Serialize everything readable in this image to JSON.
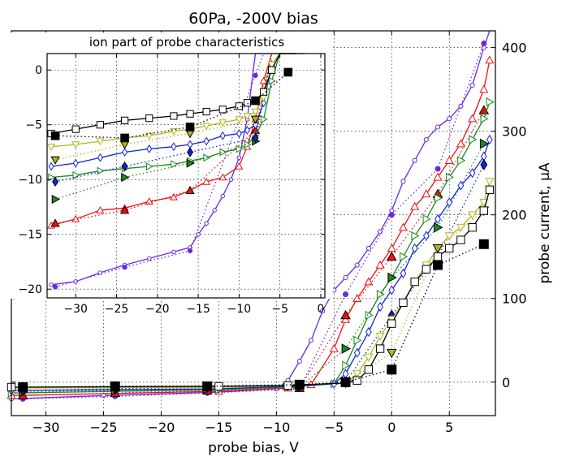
{
  "chart_data": [
    {
      "type": "line",
      "title": "60Pa, -200V bias",
      "xlabel": "probe bias, V",
      "ylabel": "probe current, μA",
      "xlim": [
        -33,
        9
      ],
      "ylim": [
        -40,
        420
      ],
      "xticks": [
        -30,
        -25,
        -20,
        -15,
        -10,
        -5,
        0,
        5
      ],
      "yticks": [
        0,
        100,
        200,
        300,
        400
      ],
      "xtick_labels": [
        "−30",
        "−25",
        "−20",
        "−15",
        "−10",
        "−5",
        "0",
        "5"
      ],
      "ytick_labels": [
        "0",
        "100",
        "200",
        "300",
        "400"
      ],
      "grid": true,
      "series": [
        {
          "color": "#6a2be0",
          "style": "solid",
          "x": [
            -33,
            -25,
            -15,
            -10,
            -9,
            -8,
            -7,
            -6,
            -5,
            -4,
            -3,
            -2,
            -1,
            0,
            1,
            2,
            3,
            4,
            5,
            6,
            7,
            8,
            8.5
          ],
          "y": [
            -20,
            -16,
            -12,
            -8,
            2,
            25,
            50,
            85,
            110,
            125,
            140,
            160,
            180,
            205,
            240,
            265,
            290,
            305,
            315,
            330,
            355,
            400,
            420
          ]
        },
        {
          "color": "#6a2be0",
          "style": "dotted",
          "x": [
            -32,
            -24,
            -16,
            -8,
            -4,
            0,
            4,
            8
          ],
          "y": [
            -20,
            -17,
            -13,
            -8,
            105,
            200,
            255,
            405
          ]
        },
        {
          "color": "#ee1111",
          "style": "solid",
          "x": [
            -33,
            -15,
            -9,
            -7,
            -5,
            -4,
            -3,
            -2,
            -1,
            0,
            1,
            2,
            3,
            4,
            5,
            6,
            7,
            8,
            8.5
          ],
          "y": [
            -16,
            -11,
            -7,
            -3,
            40,
            75,
            100,
            120,
            140,
            160,
            185,
            210,
            225,
            245,
            265,
            285,
            315,
            350,
            385
          ]
        },
        {
          "color": "#ee1111",
          "style": "dotted",
          "x": [
            -32,
            -24,
            -16,
            -8,
            -4,
            0,
            4,
            8
          ],
          "y": [
            -16,
            -13,
            -10,
            -7,
            80,
            150,
            225,
            325
          ]
        },
        {
          "color": "#1a8a1a",
          "style": "solid",
          "x": [
            -33,
            -15,
            -9,
            -5,
            -4,
            -3,
            -2,
            -1,
            0,
            1,
            2,
            3,
            4,
            5,
            6,
            7,
            8,
            8.5
          ],
          "y": [
            -13,
            -9,
            -6,
            -2,
            20,
            50,
            80,
            105,
            125,
            150,
            175,
            195,
            220,
            245,
            265,
            290,
            315,
            335
          ]
        },
        {
          "color": "#1a8a1a",
          "style": "dotted",
          "x": [
            -32,
            -24,
            -16,
            -8,
            -4,
            0,
            4,
            8
          ],
          "y": [
            -12,
            -10,
            -8,
            -6,
            40,
            125,
            185,
            285
          ]
        },
        {
          "color": "#1122dd",
          "style": "solid",
          "x": [
            -33,
            -15,
            -9,
            -5,
            -4,
            -3,
            -2,
            -1,
            0,
            1,
            2,
            3,
            4,
            5,
            6,
            7,
            8,
            8.5
          ],
          "y": [
            -10,
            -8,
            -5,
            -2,
            10,
            35,
            60,
            90,
            110,
            130,
            160,
            175,
            195,
            215,
            235,
            250,
            270,
            290
          ]
        },
        {
          "color": "#1122dd",
          "style": "dotted",
          "x": [
            -32,
            -24,
            -16,
            -8,
            -4,
            0,
            4,
            8
          ],
          "y": [
            -10,
            -8,
            -6,
            -5,
            0,
            80,
            150,
            260
          ]
        },
        {
          "color": "#b5b51a",
          "style": "solid",
          "x": [
            -33,
            -15,
            -9,
            -4,
            -3,
            -2,
            -1,
            0,
            1,
            2,
            3,
            4,
            5,
            6,
            7,
            8,
            8.5
          ],
          "y": [
            -7,
            -6,
            -4,
            -1,
            10,
            30,
            55,
            75,
            95,
            120,
            140,
            160,
            175,
            185,
            200,
            215,
            240
          ]
        },
        {
          "color": "#b5b51a",
          "style": "dotted",
          "x": [
            -32,
            -24,
            -16,
            -8,
            -4,
            0,
            4,
            8
          ],
          "y": [
            -7,
            -5,
            -4,
            -3,
            -1,
            35,
            160,
            205
          ]
        },
        {
          "color": "#000000",
          "style": "solid",
          "x": [
            -33,
            -15,
            -9,
            -4,
            -3,
            -2,
            -1,
            0,
            1,
            2,
            3,
            4,
            5,
            6,
            7,
            8,
            8.5
          ],
          "y": [
            -6,
            -5,
            -4,
            -1,
            2,
            15,
            40,
            70,
            95,
            120,
            135,
            150,
            160,
            170,
            185,
            205,
            230
          ]
        },
        {
          "color": "#000000",
          "style": "dotted",
          "x": [
            -32,
            -24,
            -16,
            -8,
            -4,
            0,
            4,
            8
          ],
          "y": [
            -6,
            -5,
            -5,
            -3,
            0,
            15,
            140,
            165
          ]
        }
      ]
    },
    {
      "type": "line",
      "title": "ion part of probe characteristics",
      "xlim": [
        -33.5,
        0.5
      ],
      "ylim": [
        -20.8,
        1.5
      ],
      "xticks": [
        -30,
        -25,
        -20,
        -15,
        -10,
        -5,
        0
      ],
      "yticks": [
        0,
        -5,
        -10,
        -15,
        -20
      ],
      "xtick_labels": [
        "−30",
        "−25",
        "−20",
        "−15",
        "−10",
        "−5",
        "0"
      ],
      "ytick_labels": [
        "0",
        "−5",
        "−10",
        "−15",
        "−20"
      ],
      "grid": true,
      "series": [
        {
          "color": "#6a2be0",
          "style": "solid",
          "x": [
            -33,
            -30,
            -27,
            -24,
            -21,
            -18,
            -16,
            -15,
            -14,
            -13,
            -12,
            -11,
            -10,
            -9,
            -8,
            -7,
            -6
          ],
          "y": [
            -19.6,
            -19.3,
            -18.5,
            -17.8,
            -17.2,
            -16.6,
            -16.2,
            -15.0,
            -14.0,
            -12.8,
            -11.5,
            -10.0,
            -8.0,
            -4.5,
            1.5,
            1.5,
            1.5
          ]
        },
        {
          "color": "#6a2be0",
          "style": "dotted",
          "x": [
            -32.5,
            -24,
            -16,
            -8,
            -7
          ],
          "y": [
            -19.8,
            -18.0,
            -16.5,
            -0.5,
            1.5
          ]
        },
        {
          "color": "#ee1111",
          "style": "solid",
          "x": [
            -33,
            -30,
            -27,
            -24,
            -21,
            -18,
            -16,
            -14,
            -12,
            -10,
            -9,
            -8,
            -7,
            -6,
            -5,
            -4,
            -3
          ],
          "y": [
            -14.2,
            -13.6,
            -12.8,
            -12.6,
            -12.0,
            -11.6,
            -11.0,
            -10.2,
            -9.8,
            -8.8,
            -7.0,
            -4.5,
            -1.0,
            1.5,
            1.5,
            1.5,
            1.5
          ]
        },
        {
          "color": "#ee1111",
          "style": "dotted",
          "x": [
            -32.5,
            -24,
            -16,
            -8,
            -6
          ],
          "y": [
            -14.0,
            -12.8,
            -11.0,
            -5.5,
            1.5
          ]
        },
        {
          "color": "#1a8a1a",
          "style": "solid",
          "x": [
            -33,
            -30,
            -27,
            -24,
            -21,
            -18,
            -16,
            -14,
            -12,
            -10,
            -9,
            -8,
            -7,
            -6,
            -5,
            -4
          ],
          "y": [
            -9.8,
            -9.6,
            -9.2,
            -9.0,
            -8.8,
            -8.6,
            -8.3,
            -8.0,
            -7.5,
            -7.2,
            -6.8,
            -6.0,
            -4.5,
            -1.0,
            1.5,
            1.5
          ]
        },
        {
          "color": "#1a8a1a",
          "style": "dotted",
          "x": [
            -32.5,
            -24,
            -16,
            -8,
            -6
          ],
          "y": [
            -11.8,
            -9.8,
            -8.5,
            -6.5,
            1.5
          ]
        },
        {
          "color": "#1122dd",
          "style": "solid",
          "x": [
            -33,
            -30,
            -27,
            -24,
            -21,
            -18,
            -16,
            -14,
            -12,
            -10,
            -9,
            -8,
            -7,
            -6,
            -5,
            -4,
            -3
          ],
          "y": [
            -8.8,
            -8.5,
            -8.0,
            -7.5,
            -7.2,
            -7.0,
            -6.8,
            -6.5,
            -6.0,
            -5.8,
            -5.5,
            -5.0,
            -3.0,
            0.5,
            1.5,
            1.5,
            1.5
          ]
        },
        {
          "color": "#1122dd",
          "style": "dotted",
          "x": [
            -32.5,
            -24,
            -16,
            -8,
            -6
          ],
          "y": [
            -10.2,
            -8.8,
            -7.5,
            -6.2,
            1.5
          ]
        },
        {
          "color": "#b5b51a",
          "style": "solid",
          "x": [
            -33,
            -30,
            -27,
            -24,
            -21,
            -18,
            -16,
            -14,
            -12,
            -10,
            -9,
            -8,
            -7,
            -6,
            -5,
            -4,
            -3
          ],
          "y": [
            -7.0,
            -6.8,
            -6.5,
            -6.2,
            -6.0,
            -5.6,
            -5.4,
            -5.1,
            -4.8,
            -4.5,
            -4.2,
            -3.8,
            -2.5,
            0.5,
            1.5,
            1.5,
            1.5
          ]
        },
        {
          "color": "#b5b51a",
          "style": "dotted",
          "x": [
            -32.5,
            -24,
            -16,
            -8,
            -6
          ],
          "y": [
            -8.2,
            -6.8,
            -5.8,
            -4.5,
            1.5
          ]
        },
        {
          "color": "#000000",
          "style": "solid",
          "x": [
            -33,
            -30,
            -27,
            -24,
            -21,
            -18,
            -16,
            -14,
            -12,
            -10,
            -9,
            -8,
            -7,
            -6,
            -5,
            -4,
            -3,
            -2
          ],
          "y": [
            -5.8,
            -5.4,
            -5.0,
            -4.6,
            -4.4,
            -4.2,
            -4.0,
            -3.8,
            -3.6,
            -3.3,
            -3.0,
            -2.8,
            -2.0,
            0.0,
            1.5,
            1.5,
            1.5,
            1.5
          ]
        },
        {
          "color": "#000000",
          "style": "dotted",
          "x": [
            -32.5,
            -24,
            -16,
            -8,
            -4
          ],
          "y": [
            -6.0,
            -6.2,
            -5.2,
            -2.8,
            -0.2
          ]
        }
      ]
    }
  ]
}
